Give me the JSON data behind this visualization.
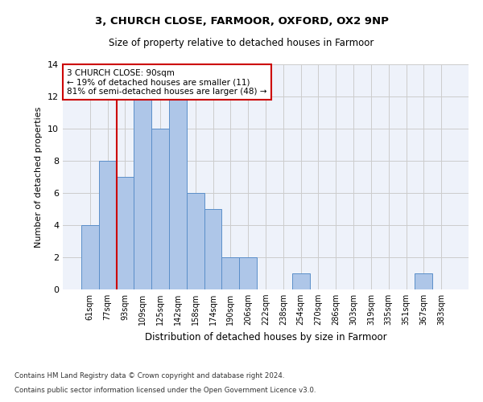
{
  "title1": "3, CHURCH CLOSE, FARMOOR, OXFORD, OX2 9NP",
  "title2": "Size of property relative to detached houses in Farmoor",
  "xlabel": "Distribution of detached houses by size in Farmoor",
  "ylabel": "Number of detached properties",
  "footnote1": "Contains HM Land Registry data © Crown copyright and database right 2024.",
  "footnote2": "Contains public sector information licensed under the Open Government Licence v3.0.",
  "annotation_line1": "3 CHURCH CLOSE: 90sqm",
  "annotation_line2": "← 19% of detached houses are smaller (11)",
  "annotation_line3": "81% of semi-detached houses are larger (48) →",
  "bar_labels": [
    "61sqm",
    "77sqm",
    "93sqm",
    "109sqm",
    "125sqm",
    "142sqm",
    "158sqm",
    "174sqm",
    "190sqm",
    "206sqm",
    "222sqm",
    "238sqm",
    "254sqm",
    "270sqm",
    "286sqm",
    "303sqm",
    "319sqm",
    "335sqm",
    "351sqm",
    "367sqm",
    "383sqm"
  ],
  "bar_values": [
    4,
    8,
    7,
    12,
    10,
    12,
    6,
    5,
    2,
    2,
    0,
    0,
    1,
    0,
    0,
    0,
    0,
    0,
    0,
    1,
    0
  ],
  "bar_color": "#aec6e8",
  "bar_edge_color": "#5b8fc9",
  "vline_color": "#cc0000",
  "annotation_box_color": "#cc0000",
  "ylim": [
    0,
    14
  ],
  "yticks": [
    0,
    2,
    4,
    6,
    8,
    10,
    12,
    14
  ],
  "grid_color": "#cccccc",
  "background_color": "#ffffff",
  "plot_bg_color": "#eef2fa"
}
